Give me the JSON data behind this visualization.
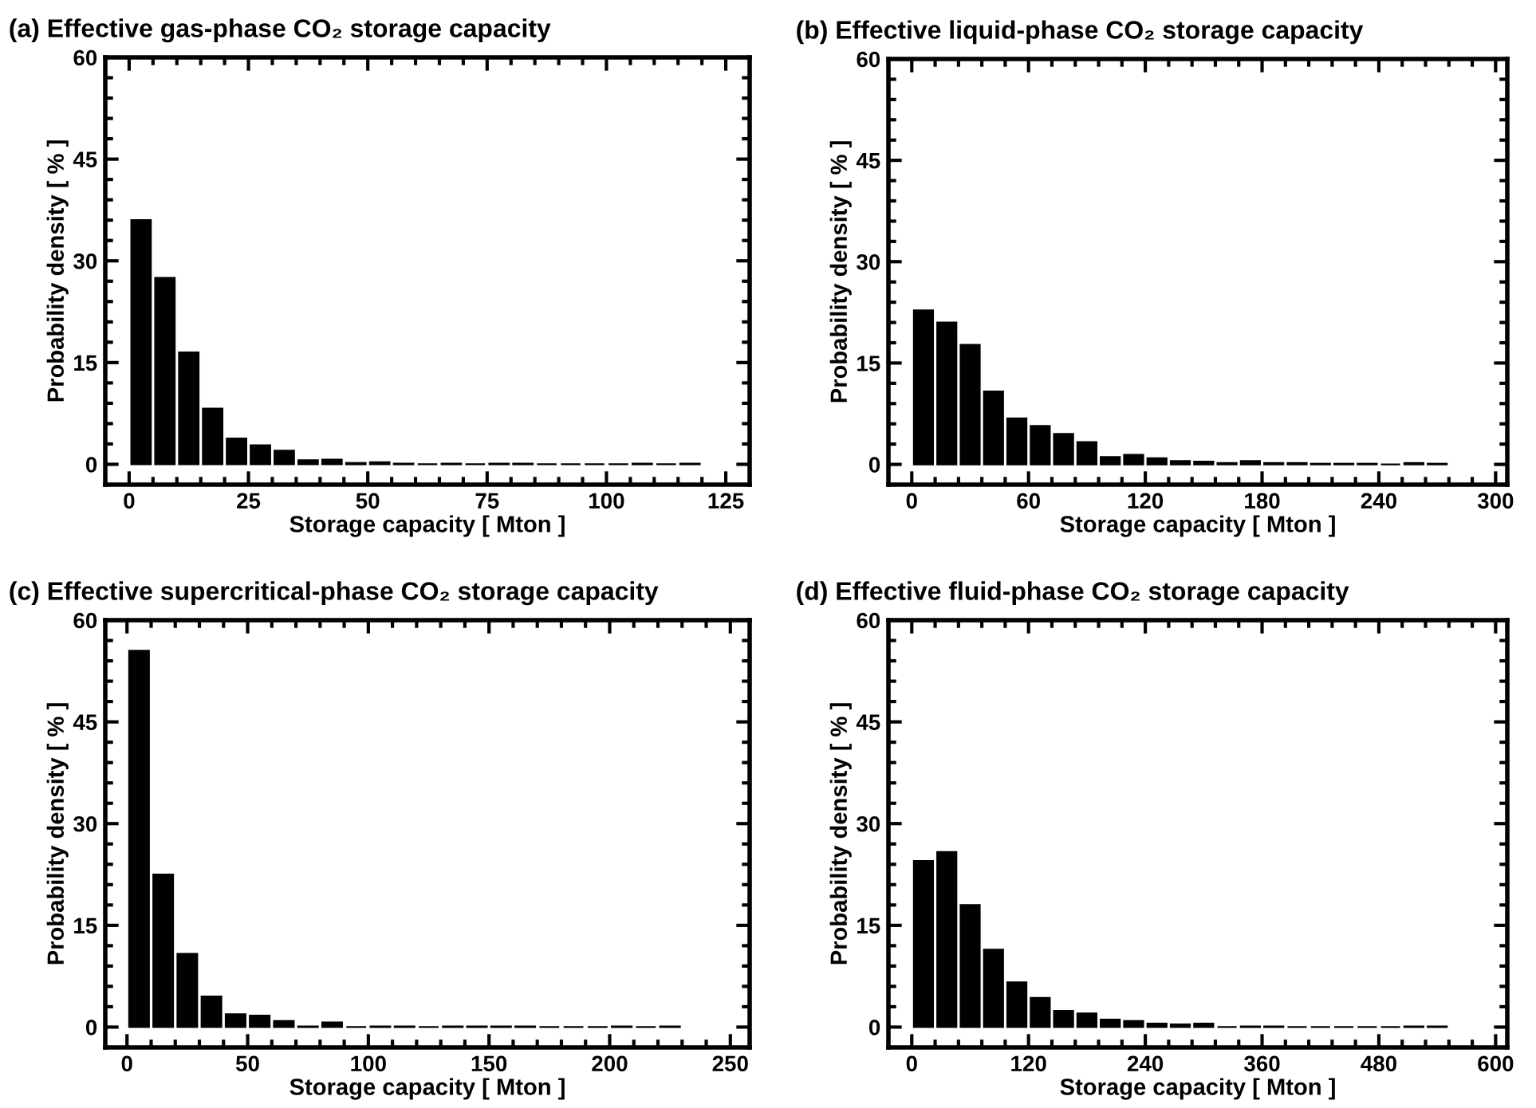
{
  "chart_data": [
    {
      "type": "histogram",
      "title": "(a) Effective gas-phase CO₂ storage capacity",
      "xlabel": "Storage capacity [ Mton ]",
      "ylabel": "Probability density [ % ]",
      "color": "#000000",
      "bins": [
        0,
        5,
        10,
        15,
        20,
        25,
        30,
        35,
        40,
        45,
        50,
        55,
        60,
        65,
        70,
        75,
        80,
        85,
        90,
        95,
        100,
        105,
        110,
        115,
        120
      ],
      "values": [
        36,
        27.5,
        16.5,
        8.2,
        3.8,
        2.8,
        2.0,
        0.6,
        0.7,
        0.2,
        0.3,
        0.1,
        0,
        0.1,
        0,
        0.1,
        0.1,
        0,
        0,
        0,
        0,
        0.1,
        0,
        0.1
      ],
      "xlim": [
        -5,
        130
      ],
      "ylim": [
        -3,
        60
      ],
      "xticks": [
        0,
        25,
        50,
        75,
        100,
        125
      ],
      "yticks": [
        0,
        15,
        30,
        45,
        60
      ]
    },
    {
      "type": "histogram",
      "title": "(b) Effective liquid-phase CO₂ storage capacity",
      "xlabel": "Storage capacity [ Mton ]",
      "ylabel": "Probability density [ % ]",
      "color": "#000000",
      "bins": [
        0,
        12,
        24,
        36,
        48,
        60,
        72,
        84,
        96,
        108,
        120,
        132,
        144,
        156,
        168,
        180,
        192,
        204,
        216,
        228,
        240,
        252,
        264,
        276
      ],
      "values": [
        22.8,
        21,
        17.7,
        10.8,
        6.8,
        5.7,
        4.5,
        3.3,
        1.1,
        1.4,
        0.9,
        0.5,
        0.4,
        0.2,
        0.5,
        0.2,
        0.2,
        0.1,
        0.1,
        0.1,
        0,
        0.2,
        0.1
      ],
      "xlim": [
        -12,
        306
      ],
      "ylim": [
        -3,
        60
      ],
      "xticks": [
        0,
        60,
        120,
        180,
        240,
        300
      ],
      "yticks": [
        0,
        15,
        30,
        45,
        60
      ]
    },
    {
      "type": "histogram",
      "title": "(c) Effective supercritical-phase CO₂ storage capacity",
      "xlabel": "Storage capacity [ Mton ]",
      "ylabel": "Probability density [ % ]",
      "color": "#000000",
      "bins": [
        0,
        10,
        20,
        30,
        40,
        50,
        60,
        70,
        80,
        90,
        100,
        110,
        120,
        130,
        140,
        150,
        160,
        170,
        180,
        190,
        200,
        210,
        220,
        230
      ],
      "values": [
        55.5,
        22.5,
        10.8,
        4.5,
        1.9,
        1.7,
        0.9,
        0.1,
        0.7,
        0,
        0.1,
        0.1,
        0,
        0.1,
        0.1,
        0.1,
        0.1,
        0,
        0,
        0,
        0.1,
        0,
        0.1
      ],
      "xlim": [
        -9,
        258
      ],
      "ylim": [
        -3,
        60
      ],
      "xticks": [
        0,
        50,
        100,
        150,
        200,
        250
      ],
      "yticks": [
        0,
        15,
        30,
        45,
        60
      ]
    },
    {
      "type": "histogram",
      "title": "(d) Effective fluid-phase CO₂ storage capacity",
      "xlabel": "Storage capacity [ Mton ]",
      "ylabel": "Probability density [ % ]",
      "color": "#000000",
      "bins": [
        0,
        24,
        48,
        72,
        96,
        120,
        144,
        168,
        192,
        216,
        240,
        264,
        288,
        312,
        336,
        360,
        384,
        408,
        432,
        456,
        480,
        504,
        528,
        552
      ],
      "values": [
        24.5,
        25.8,
        18,
        11.4,
        6.6,
        4.3,
        2.4,
        2.0,
        1.1,
        0.9,
        0.5,
        0.4,
        0.5,
        0,
        0.1,
        0.1,
        0,
        0,
        0,
        0,
        0,
        0.1,
        0.1
      ],
      "xlim": [
        -24,
        612
      ],
      "ylim": [
        -3,
        60
      ],
      "xticks": [
        0,
        120,
        240,
        360,
        480,
        600
      ],
      "yticks": [
        0,
        15,
        30,
        45,
        60
      ]
    }
  ]
}
